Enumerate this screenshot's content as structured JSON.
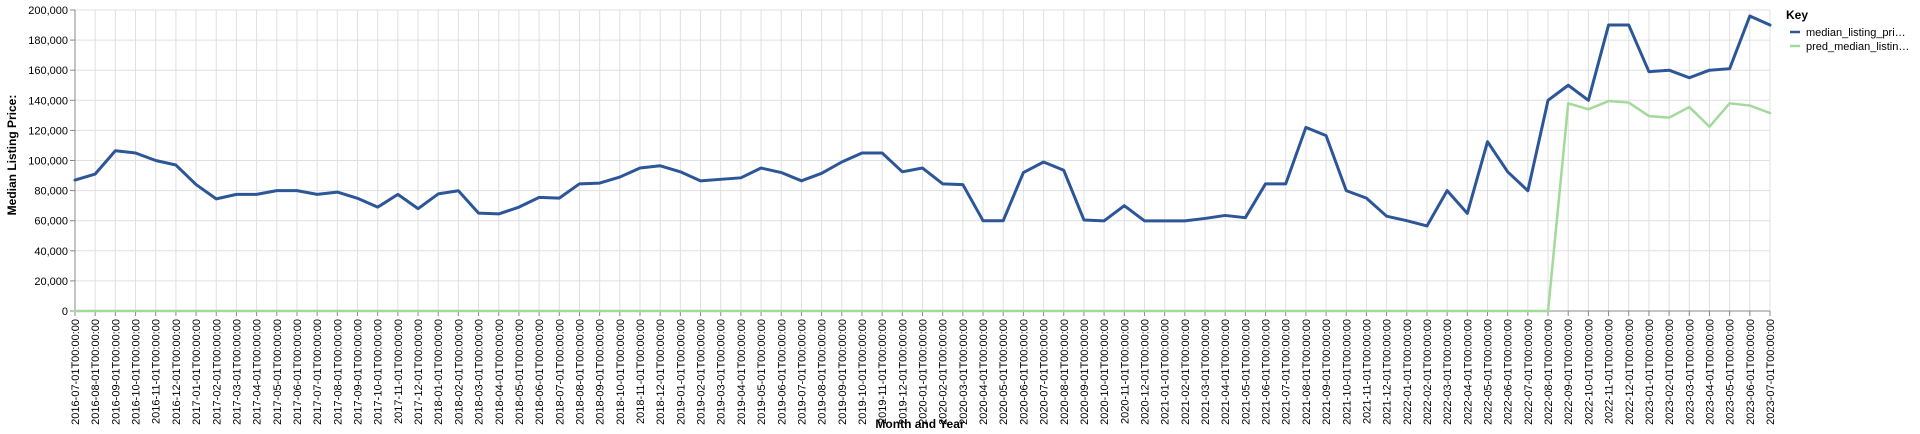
{
  "chart_data": {
    "type": "line",
    "title": "",
    "xlabel": "Month and Year",
    "ylabel": "Median Listing Price:",
    "ylim": [
      0,
      200000
    ],
    "y_ticks": [
      "0",
      "20,000",
      "40,000",
      "60,000",
      "80,000",
      "100,000",
      "120,000",
      "140,000",
      "160,000",
      "180,000",
      "200,000"
    ],
    "grid": true,
    "legend": {
      "title": "Key",
      "position": "top-right"
    },
    "x": [
      "2016-07-01T00:00:00",
      "2016-08-01T00:00:00",
      "2016-09-01T00:00:00",
      "2016-10-01T00:00:00",
      "2016-11-01T00:00:00",
      "2016-12-01T00:00:00",
      "2017-01-01T00:00:00",
      "2017-02-01T00:00:00",
      "2017-03-01T00:00:00",
      "2017-04-01T00:00:00",
      "2017-05-01T00:00:00",
      "2017-06-01T00:00:00",
      "2017-07-01T00:00:00",
      "2017-08-01T00:00:00",
      "2017-09-01T00:00:00",
      "2017-10-01T00:00:00",
      "2017-11-01T00:00:00",
      "2017-12-01T00:00:00",
      "2018-01-01T00:00:00",
      "2018-02-01T00:00:00",
      "2018-03-01T00:00:00",
      "2018-04-01T00:00:00",
      "2018-05-01T00:00:00",
      "2018-06-01T00:00:00",
      "2018-07-01T00:00:00",
      "2018-08-01T00:00:00",
      "2018-09-01T00:00:00",
      "2018-10-01T00:00:00",
      "2018-11-01T00:00:00",
      "2018-12-01T00:00:00",
      "2019-01-01T00:00:00",
      "2019-02-01T00:00:00",
      "2019-03-01T00:00:00",
      "2019-04-01T00:00:00",
      "2019-05-01T00:00:00",
      "2019-06-01T00:00:00",
      "2019-07-01T00:00:00",
      "2019-08-01T00:00:00",
      "2019-09-01T00:00:00",
      "2019-10-01T00:00:00",
      "2019-11-01T00:00:00",
      "2019-12-01T00:00:00",
      "2020-01-01T00:00:00",
      "2020-02-01T00:00:00",
      "2020-03-01T00:00:00",
      "2020-04-01T00:00:00",
      "2020-05-01T00:00:00",
      "2020-06-01T00:00:00",
      "2020-07-01T00:00:00",
      "2020-08-01T00:00:00",
      "2020-09-01T00:00:00",
      "2020-10-01T00:00:00",
      "2020-11-01T00:00:00",
      "2020-12-01T00:00:00",
      "2021-01-01T00:00:00",
      "2021-02-01T00:00:00",
      "2021-03-01T00:00:00",
      "2021-04-01T00:00:00",
      "2021-05-01T00:00:00",
      "2021-06-01T00:00:00",
      "2021-07-01T00:00:00",
      "2021-08-01T00:00:00",
      "2021-09-01T00:00:00",
      "2021-10-01T00:00:00",
      "2021-11-01T00:00:00",
      "2021-12-01T00:00:00",
      "2022-01-01T00:00:00",
      "2022-02-01T00:00:00",
      "2022-03-01T00:00:00",
      "2022-04-01T00:00:00",
      "2022-05-01T00:00:00",
      "2022-06-01T00:00:00",
      "2022-07-01T00:00:00",
      "2022-08-01T00:00:00",
      "2022-09-01T00:00:00",
      "2022-10-01T00:00:00",
      "2022-11-01T00:00:00",
      "2022-12-01T00:00:00",
      "2023-01-01T00:00:00",
      "2023-02-01T00:00:00",
      "2023-03-01T00:00:00",
      "2023-04-01T00:00:00",
      "2023-05-01T00:00:00",
      "2023-06-01T00:00:00",
      "2023-07-01T00:00:00"
    ],
    "series": [
      {
        "name": "median_listing_pri…",
        "color": "#2c5697",
        "values": [
          87000,
          91000,
          106500,
          105000,
          100000,
          97000,
          84000,
          74500,
          77500,
          77500,
          80000,
          80000,
          77500,
          79000,
          74900,
          69000,
          77500,
          68000,
          77800,
          79900,
          65000,
          64500,
          69000,
          75500,
          75000,
          84500,
          85000,
          89000,
          95000,
          96500,
          92500,
          86500,
          87500,
          88500,
          95000,
          92000,
          86500,
          91500,
          99000,
          105000,
          105000,
          92500,
          95000,
          84500,
          84000,
          60000,
          60000,
          92000,
          99000,
          93500,
          60500,
          59900,
          70000,
          59900,
          59900,
          59900,
          61500,
          63500,
          62000,
          84500,
          84500,
          122000,
          116500,
          80000,
          75000,
          63000,
          60000,
          56500,
          80000,
          64900,
          112500,
          92500,
          79900,
          140000,
          150000,
          140000,
          190000,
          190000,
          159000,
          160000,
          155000,
          160000,
          161000,
          196000,
          190000
        ]
      },
      {
        "name": "pred_median_listin…",
        "color": "#a3d99b",
        "values": [
          0,
          0,
          0,
          0,
          0,
          0,
          0,
          0,
          0,
          0,
          0,
          0,
          0,
          0,
          0,
          0,
          0,
          0,
          0,
          0,
          0,
          0,
          0,
          0,
          0,
          0,
          0,
          0,
          0,
          0,
          0,
          0,
          0,
          0,
          0,
          0,
          0,
          0,
          0,
          0,
          0,
          0,
          0,
          0,
          0,
          0,
          0,
          0,
          0,
          0,
          0,
          0,
          0,
          0,
          0,
          0,
          0,
          0,
          0,
          0,
          0,
          0,
          0,
          0,
          0,
          0,
          0,
          0,
          0,
          0,
          0,
          0,
          0,
          0,
          138000,
          134000,
          139500,
          138500,
          129500,
          128500,
          135500,
          122500,
          138000,
          136500,
          131500
        ]
      }
    ]
  }
}
